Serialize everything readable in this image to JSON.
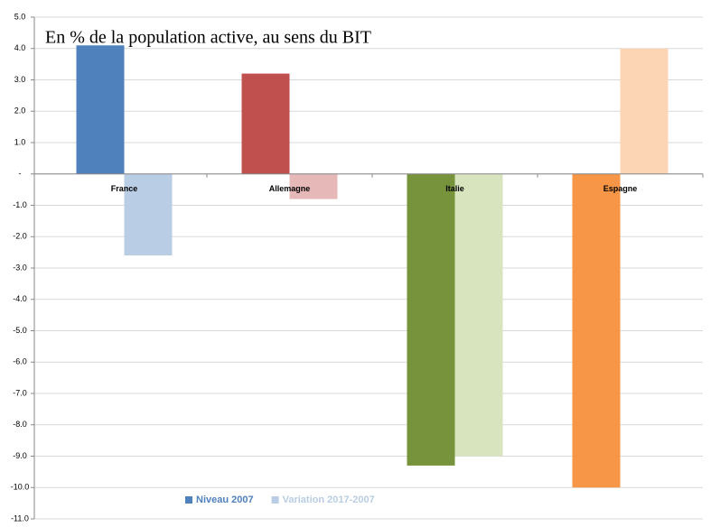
{
  "chart_data": {
    "type": "bar",
    "annotation": "En % de la population active, au sens du BIT",
    "categories": [
      "France",
      "Allemagne",
      "Italie",
      "Espagne"
    ],
    "series": [
      {
        "name": "Niveau 2007",
        "color": "#4f81bd",
        "colors": [
          "#4f81bd",
          "#c0504d",
          "#77933c",
          "#f79646"
        ],
        "values": [
          4.1,
          3.2,
          -9.3,
          -10.0
        ]
      },
      {
        "name": "Variation 2017-2007",
        "color": "#b9cde5",
        "colors": [
          "#b9cde5",
          "#e6b9b8",
          "#d7e4bd",
          "#fcd5b5"
        ],
        "values": [
          -2.6,
          -0.8,
          -9.0,
          4.0
        ]
      }
    ],
    "ylim": [
      -11,
      5
    ],
    "yticks": [
      {
        "value": 5,
        "label": "5.0"
      },
      {
        "value": 4,
        "label": "4.0"
      },
      {
        "value": 3,
        "label": "3.0"
      },
      {
        "value": 2,
        "label": "2.0"
      },
      {
        "value": 1,
        "label": "1.0"
      },
      {
        "value": 0,
        "label": "-"
      },
      {
        "value": -1,
        "label": "-1.0"
      },
      {
        "value": -2,
        "label": "-2.0"
      },
      {
        "value": -3,
        "label": "-3.0"
      },
      {
        "value": -4,
        "label": "-4.0"
      },
      {
        "value": -5,
        "label": "-5.0"
      },
      {
        "value": -6,
        "label": "-6.0"
      },
      {
        "value": -7,
        "label": "-7.0"
      },
      {
        "value": -8,
        "label": "-8.0"
      },
      {
        "value": -9,
        "label": "-9.0"
      },
      {
        "value": -10,
        "label": "-10.0"
      },
      {
        "value": -11,
        "label": "-11.0"
      }
    ],
    "grid": true,
    "legend": "bottom"
  }
}
